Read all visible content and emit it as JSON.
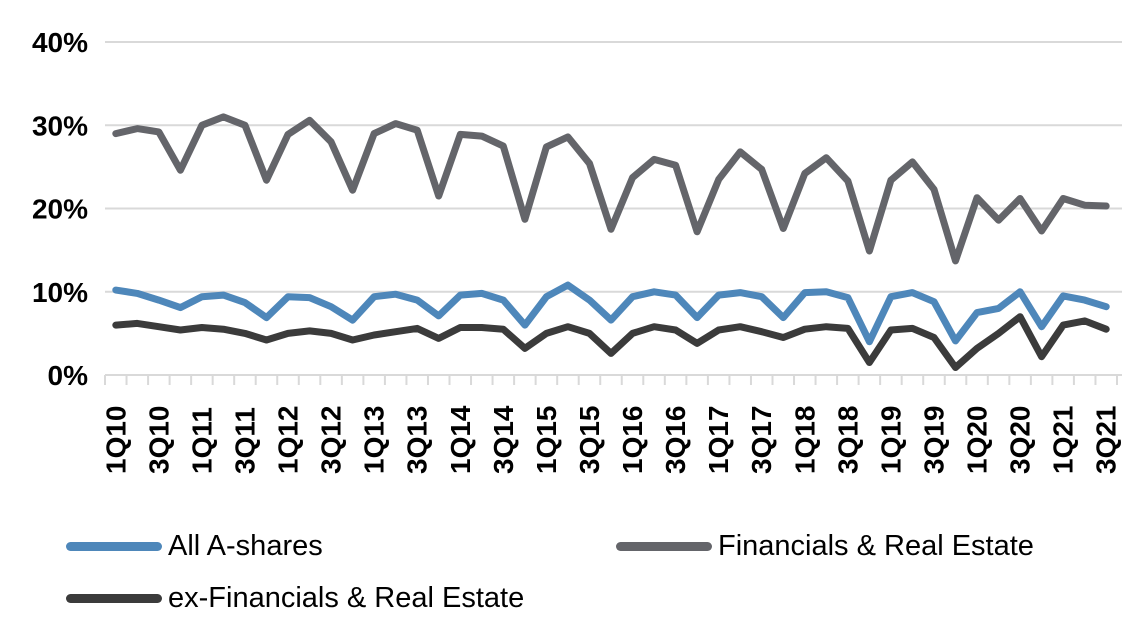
{
  "chart_data": {
    "type": "line",
    "title": "",
    "xlabel": "",
    "ylabel": "",
    "unit": "percent",
    "ylim": [
      0,
      40
    ],
    "y_ticks": [
      0,
      10,
      20,
      30,
      40
    ],
    "y_tick_labels": [
      "0%",
      "10%",
      "20%",
      "30%",
      "40%"
    ],
    "grid": "horizontal",
    "legend_position": "bottom",
    "x": [
      "1Q10",
      "2Q10",
      "3Q10",
      "4Q10",
      "1Q11",
      "2Q11",
      "3Q11",
      "4Q11",
      "1Q12",
      "2Q12",
      "3Q12",
      "4Q12",
      "1Q13",
      "2Q13",
      "3Q13",
      "4Q13",
      "1Q14",
      "2Q14",
      "3Q14",
      "4Q14",
      "1Q15",
      "2Q15",
      "3Q15",
      "4Q15",
      "1Q16",
      "2Q16",
      "3Q16",
      "4Q16",
      "1Q17",
      "2Q17",
      "3Q17",
      "4Q17",
      "1Q18",
      "2Q18",
      "3Q18",
      "4Q18",
      "1Q19",
      "2Q19",
      "3Q19",
      "4Q19",
      "1Q20",
      "2Q20",
      "3Q20",
      "4Q20",
      "1Q21",
      "2Q21",
      "3Q21"
    ],
    "x_tick_labels": [
      "1Q10",
      "3Q10",
      "1Q11",
      "3Q11",
      "1Q12",
      "3Q12",
      "1Q13",
      "3Q13",
      "1Q14",
      "3Q14",
      "1Q15",
      "3Q15",
      "1Q16",
      "3Q16",
      "1Q17",
      "3Q17",
      "1Q18",
      "3Q18",
      "1Q19",
      "3Q19",
      "1Q20",
      "3Q20",
      "1Q21",
      "3Q21"
    ],
    "x_label_every": 2,
    "series": [
      {
        "name": "All A-shares",
        "color": "#4E87BA",
        "values": [
          10.2,
          9.8,
          9.0,
          8.1,
          9.4,
          9.6,
          8.7,
          6.9,
          9.4,
          9.3,
          8.2,
          6.6,
          9.4,
          9.7,
          9.0,
          7.1,
          9.6,
          9.8,
          9.0,
          6.0,
          9.4,
          10.8,
          9.0,
          6.6,
          9.4,
          10.0,
          9.6,
          6.9,
          9.6,
          9.9,
          9.4,
          6.9,
          9.9,
          10.0,
          9.3,
          4.0,
          9.4,
          9.9,
          8.8,
          4.1,
          7.5,
          8.0,
          10.0,
          5.8,
          9.5,
          9.0,
          8.2
        ]
      },
      {
        "name": "Financials & Real Estate",
        "color": "#64656A",
        "values": [
          29.0,
          29.6,
          29.2,
          24.6,
          30.0,
          31.0,
          30.0,
          23.4,
          28.9,
          30.6,
          28.0,
          22.2,
          29.0,
          30.2,
          29.4,
          21.5,
          28.9,
          28.7,
          27.5,
          18.7,
          27.4,
          28.6,
          25.4,
          17.5,
          23.7,
          25.9,
          25.2,
          17.2,
          23.5,
          26.8,
          24.7,
          17.6,
          24.2,
          26.1,
          23.3,
          14.9,
          23.4,
          25.6,
          22.3,
          13.7,
          21.3,
          18.6,
          21.2,
          17.3,
          21.2,
          20.4,
          20.3
        ]
      },
      {
        "name": "ex-Financials & Real Estate",
        "color": "#3B3B3B",
        "values": [
          6.0,
          6.2,
          5.8,
          5.4,
          5.7,
          5.5,
          5.0,
          4.2,
          5.0,
          5.3,
          5.0,
          4.2,
          4.8,
          5.2,
          5.6,
          4.4,
          5.7,
          5.7,
          5.5,
          3.2,
          5.0,
          5.8,
          5.0,
          2.6,
          5.0,
          5.8,
          5.4,
          3.8,
          5.4,
          5.8,
          5.2,
          4.5,
          5.5,
          5.8,
          5.6,
          1.5,
          5.4,
          5.6,
          4.5,
          0.9,
          3.2,
          5.0,
          7.0,
          2.2,
          6.0,
          6.5,
          5.5
        ]
      }
    ]
  },
  "style": {
    "gridline_color": "#D9D9D9",
    "tick_color": "#D9D9D9",
    "axis_text_color": "#000000",
    "background": "#FFFFFF"
  }
}
